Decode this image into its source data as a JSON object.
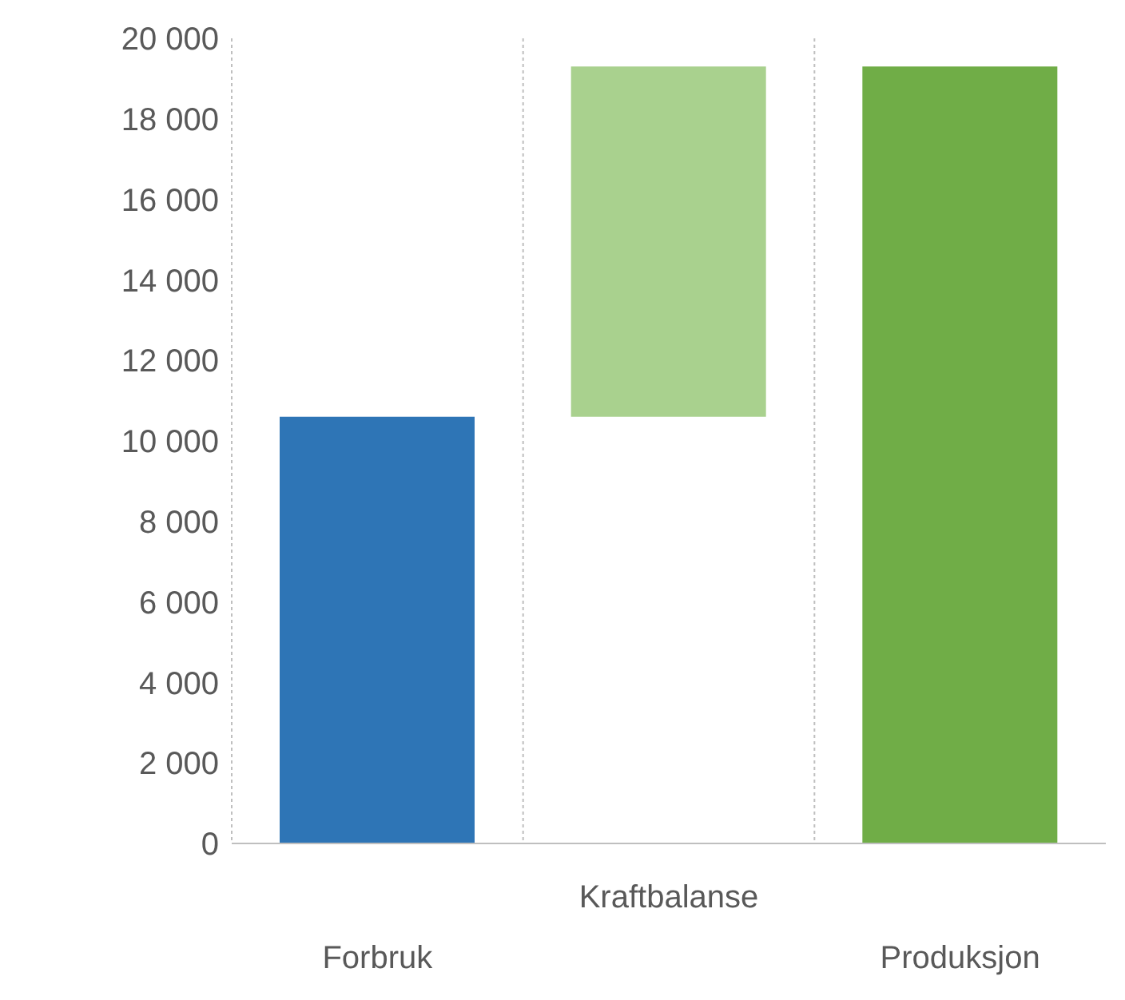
{
  "chart_data": {
    "type": "bar",
    "categories": [
      "Forbruk",
      "Kraftbalanse",
      "Produksjon"
    ],
    "values": [
      10600,
      8700,
      19300
    ],
    "base": [
      0,
      10600,
      0
    ],
    "colors": [
      "#2e75b6",
      "#a9d18e",
      "#70ad47"
    ],
    "ylim": [
      0,
      20000
    ],
    "yticks": [
      0,
      {
        "value": 2000,
        "label": "2 000"
      },
      {
        "value": 4000,
        "label": "4 000"
      },
      {
        "value": 6000,
        "label": "6 000"
      },
      {
        "value": 8000,
        "label": "8 000"
      },
      {
        "value": 10000,
        "label": "10 000"
      },
      {
        "value": 12000,
        "label": "12 000"
      },
      {
        "value": 14000,
        "label": "14 000"
      },
      {
        "value": 16000,
        "label": "16 000"
      },
      {
        "value": 18000,
        "label": "18 000"
      },
      {
        "value": 20000,
        "label": "20 000"
      }
    ],
    "grid": "x",
    "legend": false
  }
}
